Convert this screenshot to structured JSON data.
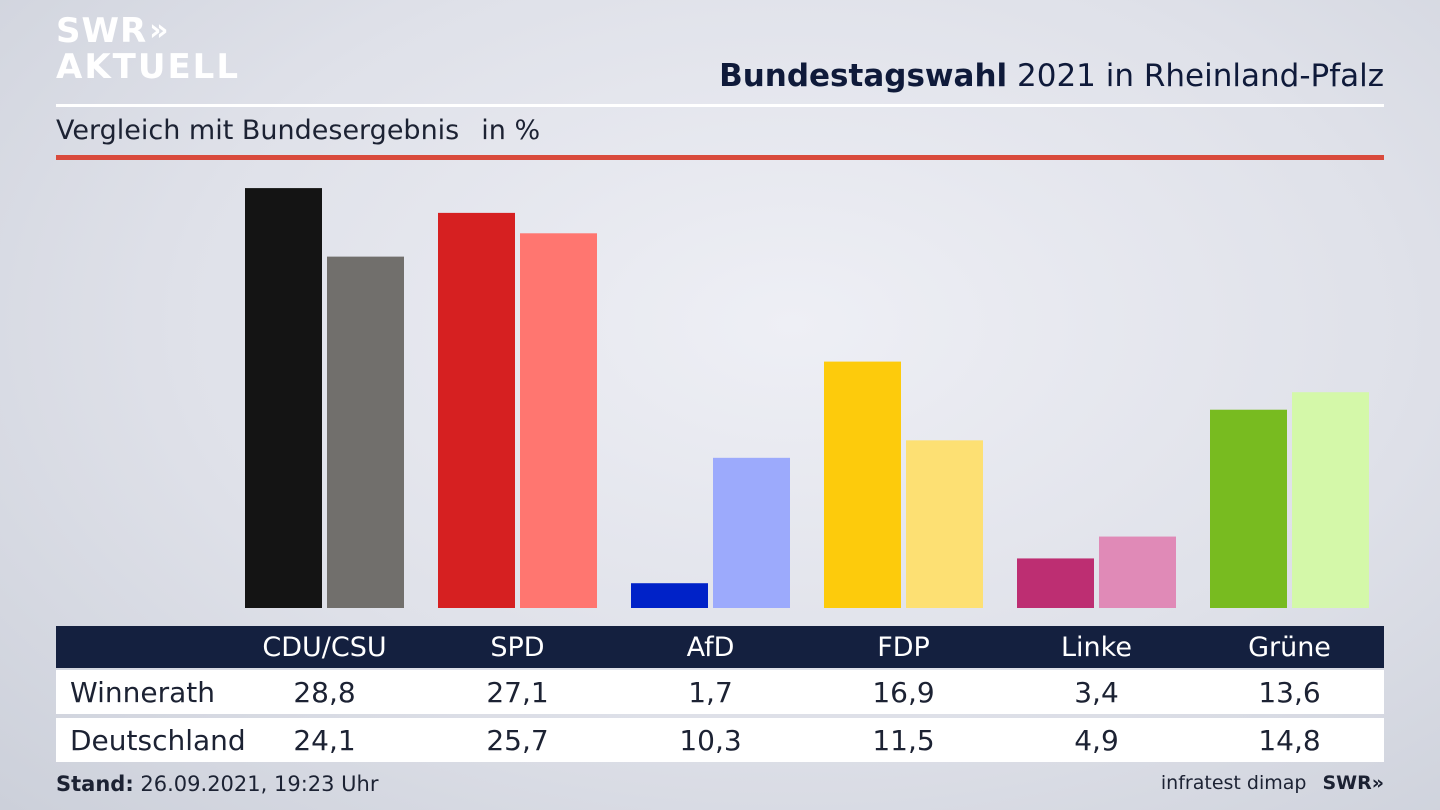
{
  "brand": {
    "logo_line1": "SWR",
    "logo_chevrons": "»",
    "logo_line2": "AKTUELL",
    "footer_logo": "SWR»"
  },
  "header": {
    "title_bold": "Bundestagswahl",
    "title_rest": " 2021 in Rheinland-Pfalz",
    "subtitle": "Vergleich mit Bundesergebnis",
    "unit": "in %"
  },
  "chart_data": {
    "type": "bar",
    "categories": [
      "CDU/CSU",
      "SPD",
      "AfD",
      "FDP",
      "Linke",
      "Grüne"
    ],
    "series": [
      {
        "name": "Winnerath",
        "values": [
          28.8,
          27.1,
          1.7,
          16.9,
          3.4,
          13.6
        ]
      },
      {
        "name": "Deutschland",
        "values": [
          24.1,
          25.7,
          10.3,
          11.5,
          4.9,
          14.8
        ]
      }
    ],
    "colors": {
      "Winnerath": [
        "#141414",
        "#d62021",
        "#0022c8",
        "#fdcb0c",
        "#bd2e72",
        "#78bb20"
      ],
      "Deutschland": [
        "#716f6c",
        "#ff7670",
        "#9caafc",
        "#fde073",
        "#e08ab7",
        "#d4f8a9"
      ]
    },
    "grid": false,
    "legend": "table-below"
  },
  "table": {
    "row_labels": [
      "Winnerath",
      "Deutschland"
    ],
    "cells": [
      [
        "28,8",
        "27,1",
        "1,7",
        "16,9",
        "3,4",
        "13,6"
      ],
      [
        "24,1",
        "25,7",
        "10,3",
        "11,5",
        "4,9",
        "14,8"
      ]
    ]
  },
  "footer": {
    "stand_label": "Stand:",
    "stand_value": " 26.09.2021, 19:23 Uhr",
    "source": "infratest dimap"
  }
}
